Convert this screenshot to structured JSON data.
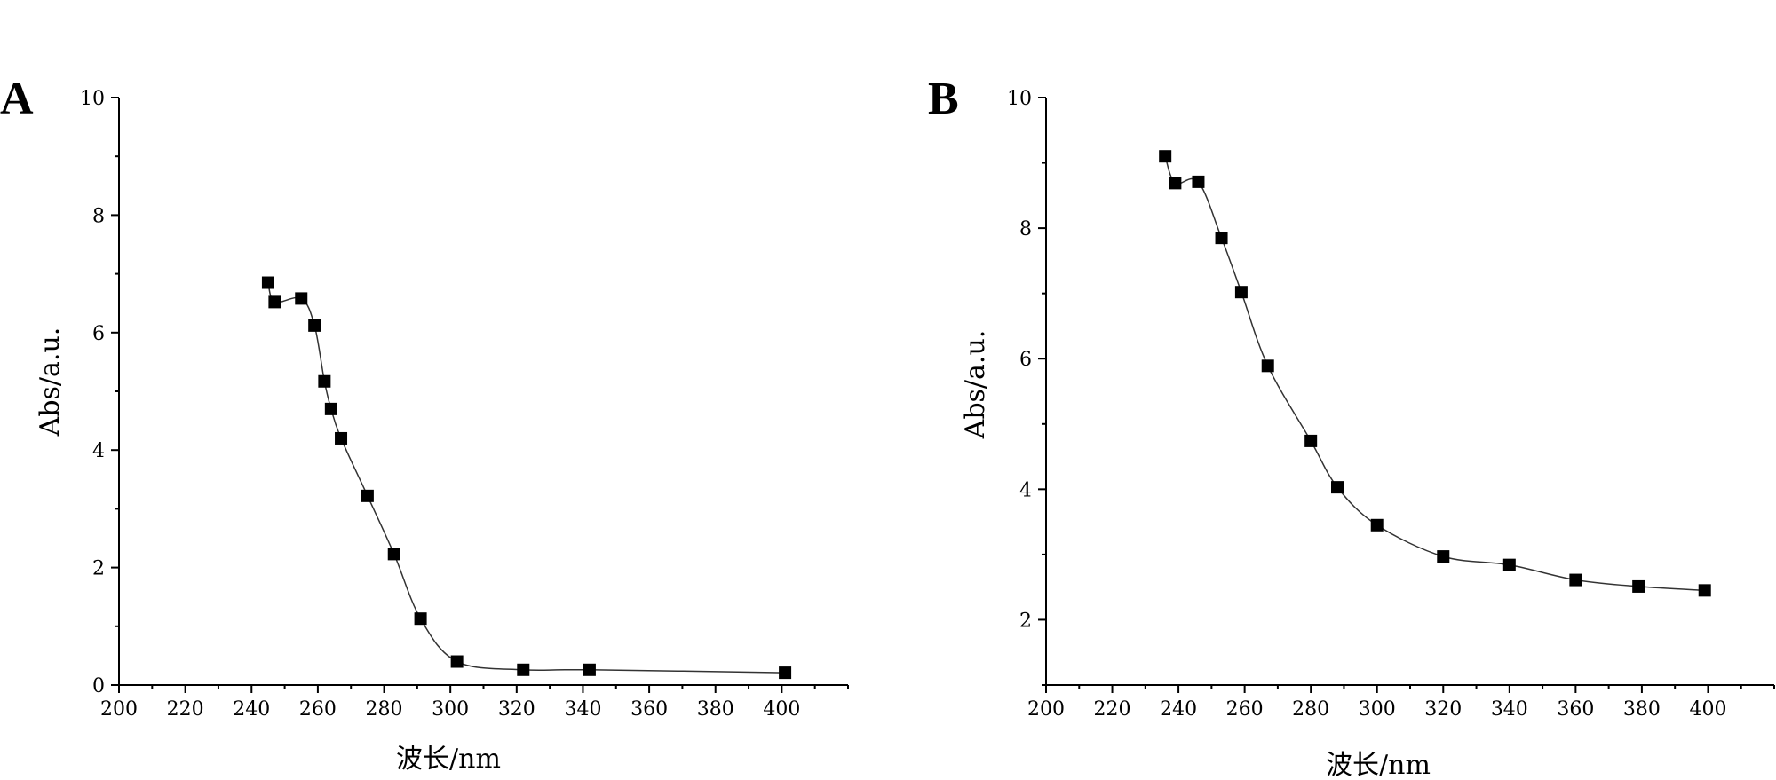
{
  "chart_data": [
    {
      "type": "line",
      "panel_label": "A",
      "xlabel": "波长/nm",
      "ylabel": "Abs/a.u.",
      "xlim": [
        200,
        420
      ],
      "ylim": [
        0,
        10
      ],
      "xticks": [
        200,
        220,
        240,
        260,
        280,
        300,
        320,
        340,
        360,
        380,
        400
      ],
      "yticks": [
        0,
        2,
        4,
        6,
        8,
        10
      ],
      "marker": "square",
      "smoothed_line": true,
      "series": [
        {
          "x": [
            245,
            247,
            255,
            259,
            262,
            264,
            267,
            275,
            283,
            291,
            302,
            322,
            342,
            401
          ],
          "y": [
            6.85,
            6.52,
            6.58,
            6.12,
            5.17,
            4.7,
            4.2,
            3.22,
            2.23,
            1.13,
            0.4,
            0.26,
            0.26,
            0.21
          ]
        }
      ]
    },
    {
      "type": "line",
      "panel_label": "B",
      "xlabel": "波长/nm",
      "ylabel": "Abs/a.u.",
      "xlim": [
        200,
        420
      ],
      "ylim": [
        1,
        10
      ],
      "xticks": [
        200,
        220,
        240,
        260,
        280,
        300,
        320,
        340,
        360,
        380,
        400
      ],
      "yticks": [
        2,
        4,
        6,
        8,
        10
      ],
      "marker": "square",
      "smoothed_line": true,
      "series": [
        {
          "x": [
            236,
            239,
            246,
            253,
            259,
            267,
            280,
            288,
            300,
            320,
            340,
            360,
            379,
            399
          ],
          "y": [
            9.1,
            8.69,
            8.71,
            7.85,
            7.02,
            5.89,
            4.74,
            4.03,
            3.45,
            2.97,
            2.84,
            2.61,
            2.51,
            2.45
          ]
        }
      ]
    }
  ]
}
